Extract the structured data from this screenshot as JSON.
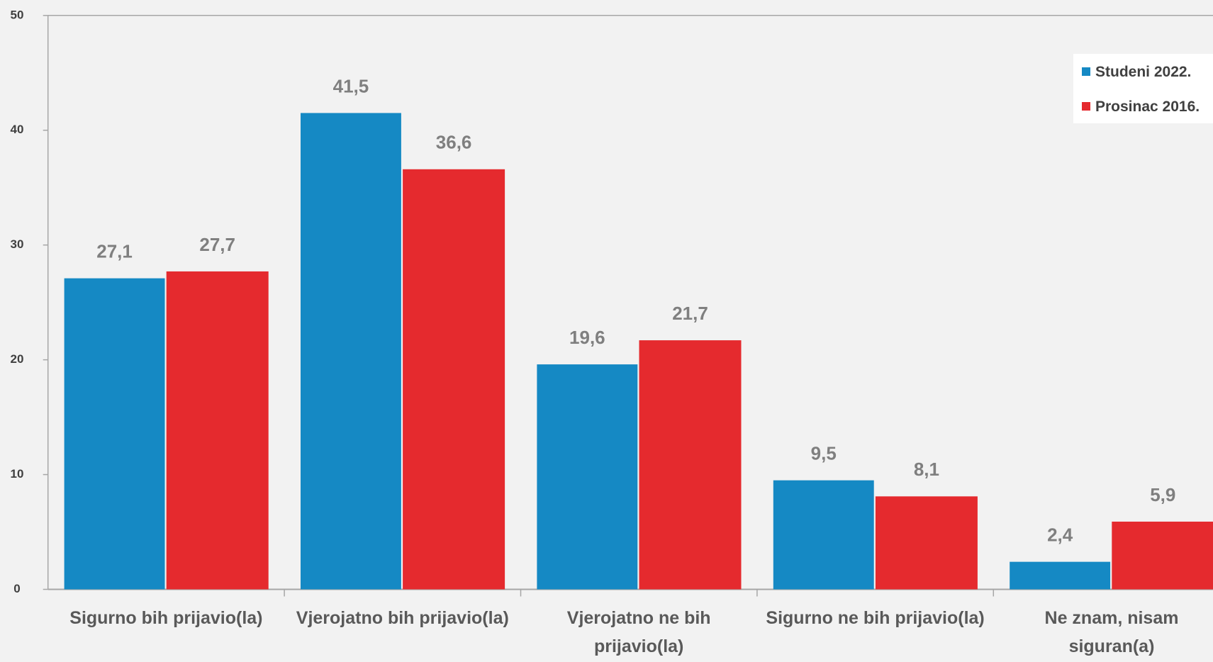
{
  "chart_data": {
    "type": "bar",
    "categories": [
      "Sigurno bih prijavio(la)",
      "Vjerojatno bih prijavio(la)",
      "Vjerojatno ne bih prijavio(la)",
      "Sigurno ne bih prijavio(la)",
      "Ne znam, nisam siguran(a)"
    ],
    "series": [
      {
        "name": "Studeni 2022.",
        "color": "#1589c4",
        "values": [
          27.1,
          41.5,
          19.6,
          9.5,
          2.4
        ],
        "value_labels": [
          "27,1",
          "41,5",
          "19,6",
          "9,5",
          "2,4"
        ]
      },
      {
        "name": "Prosinac 2016.",
        "color": "#e52a2e",
        "values": [
          27.7,
          36.6,
          21.7,
          8.1,
          5.9
        ],
        "value_labels": [
          "27,7",
          "36,6",
          "21,7",
          "8,1",
          "5,9"
        ]
      }
    ],
    "ylim": [
      0,
      50
    ],
    "yticks": [
      0,
      10,
      20,
      30,
      40,
      50
    ],
    "legend": "upper right"
  }
}
